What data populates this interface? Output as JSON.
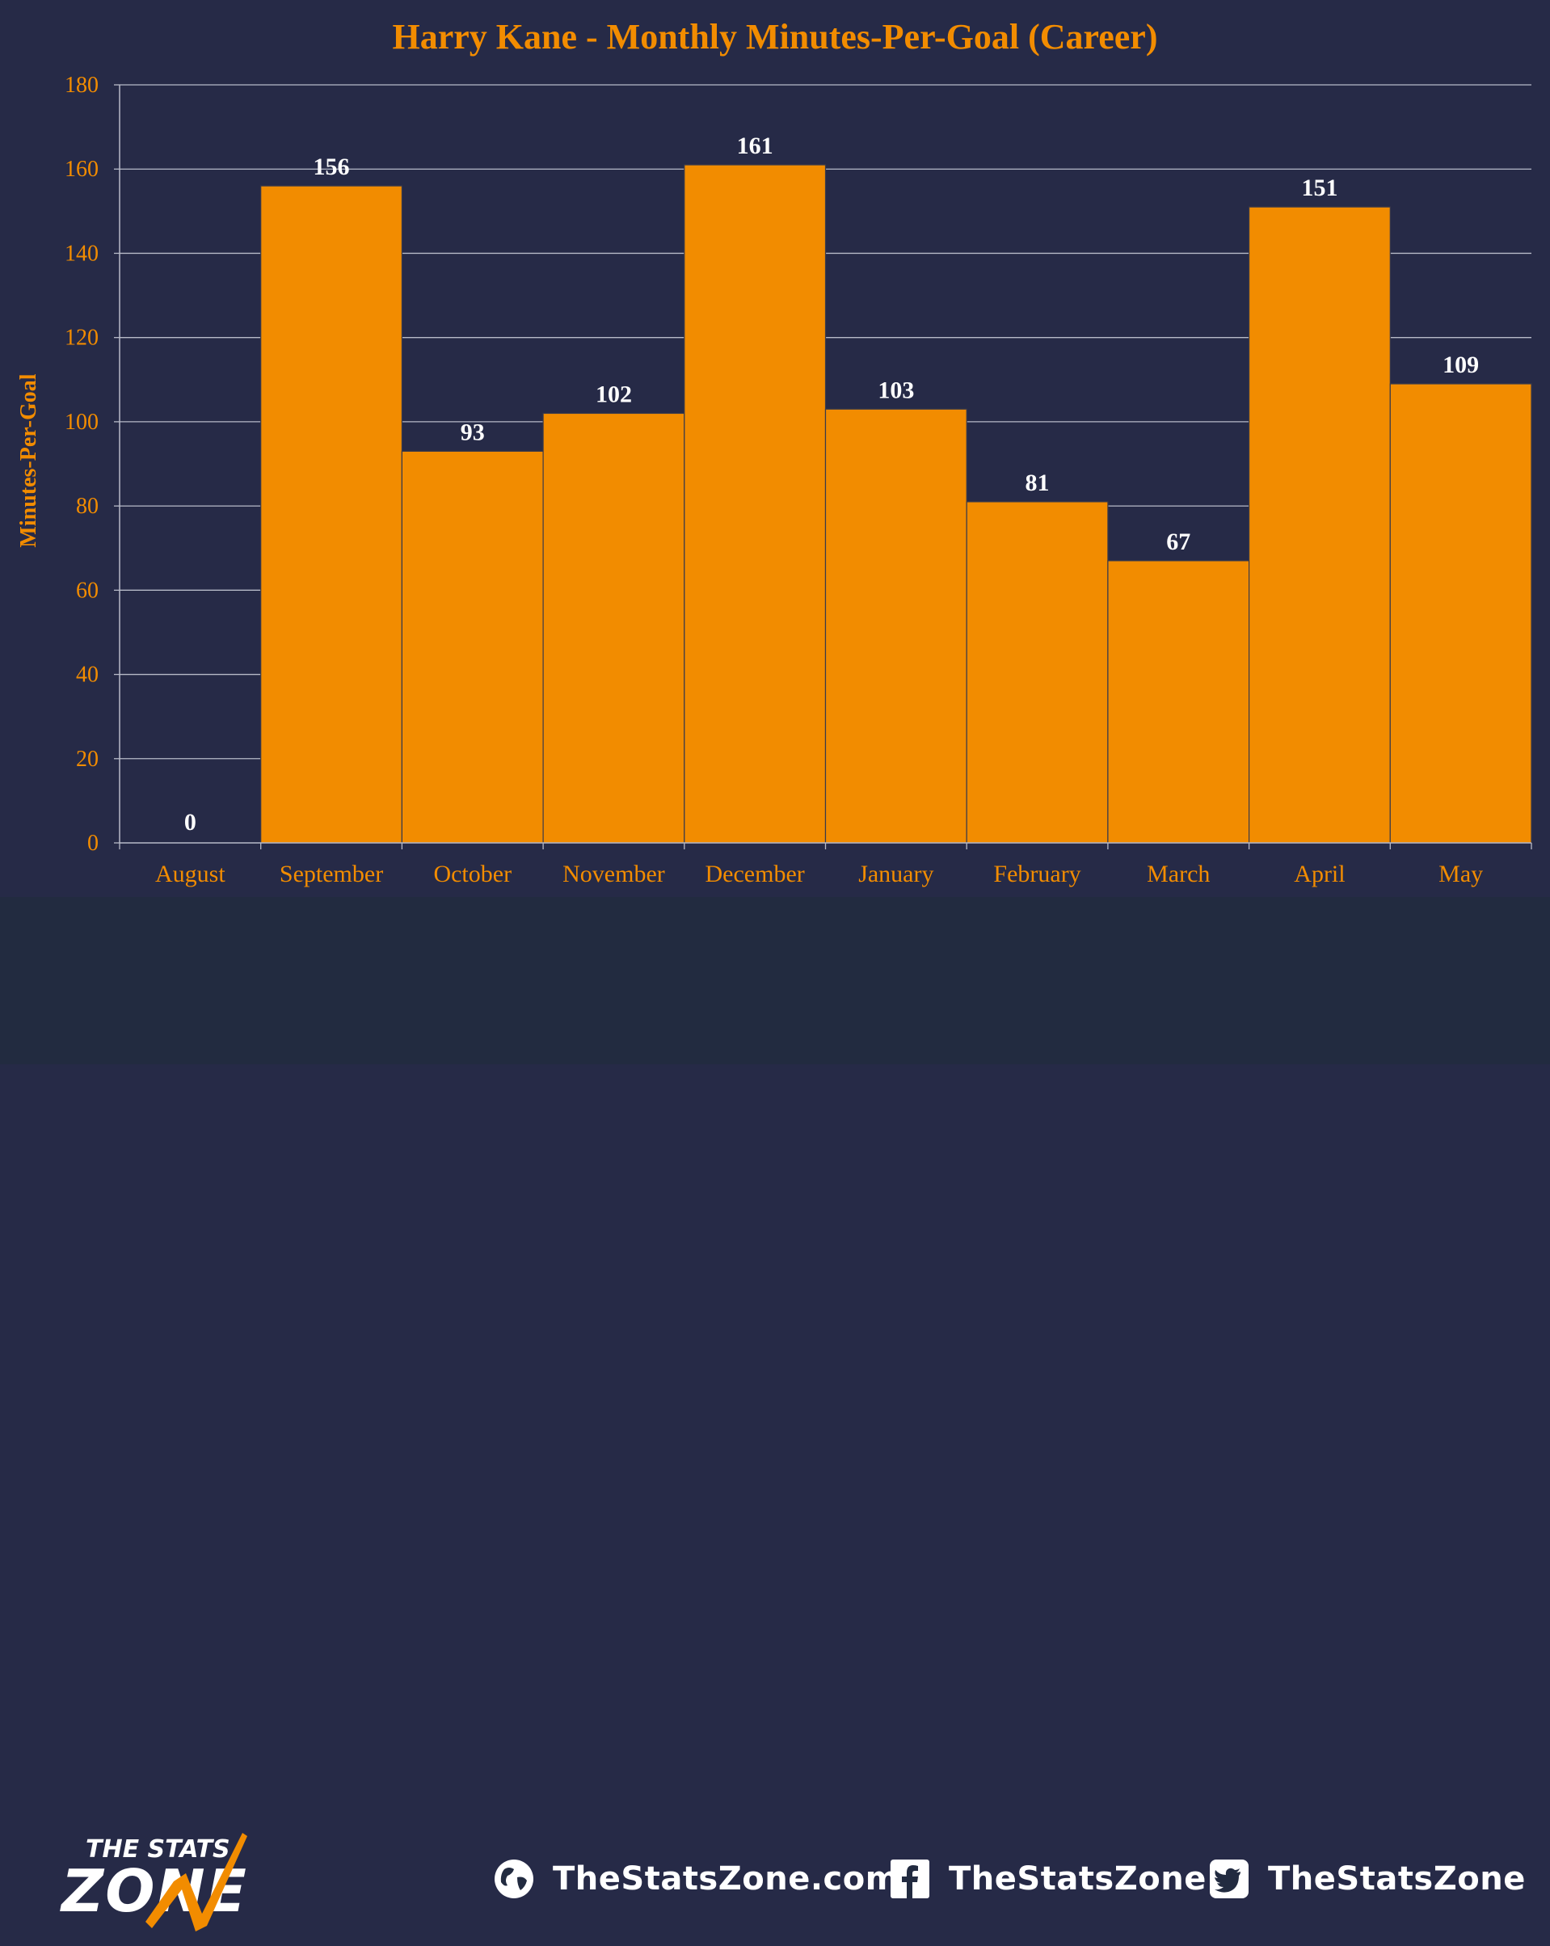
{
  "chart_data": {
    "type": "bar",
    "title": "Harry Kane - Monthly Minutes-Per-Goal (Career)",
    "xlabel": "",
    "ylabel": "Minutes-Per-Goal",
    "categories": [
      "August",
      "September",
      "October",
      "November",
      "December",
      "January",
      "February",
      "March",
      "April",
      "May"
    ],
    "values": [
      0,
      156,
      93,
      102,
      161,
      103,
      81,
      67,
      151,
      109
    ],
    "data_labels": [
      "0",
      "156",
      "93",
      "102",
      "161",
      "103",
      "81",
      "67",
      "151",
      "109"
    ],
    "ylim": [
      0,
      180
    ],
    "yticks": [
      0,
      20,
      40,
      60,
      80,
      100,
      120,
      140,
      160,
      180
    ],
    "grid": true,
    "legend": "none",
    "colors": {
      "bar": "#f28c00",
      "background": "#262a47",
      "text_accent": "#f28c00",
      "grid": "#b7bac8",
      "data_label": "#ffffff"
    }
  },
  "footer": {
    "brand_line1": "THE STATS",
    "brand_line2": "ZONE",
    "website": "TheStatsZone.com",
    "facebook": "TheStatsZone",
    "twitter": "TheStatsZone",
    "icons": [
      "globe-icon",
      "facebook-icon",
      "twitter-icon"
    ]
  }
}
